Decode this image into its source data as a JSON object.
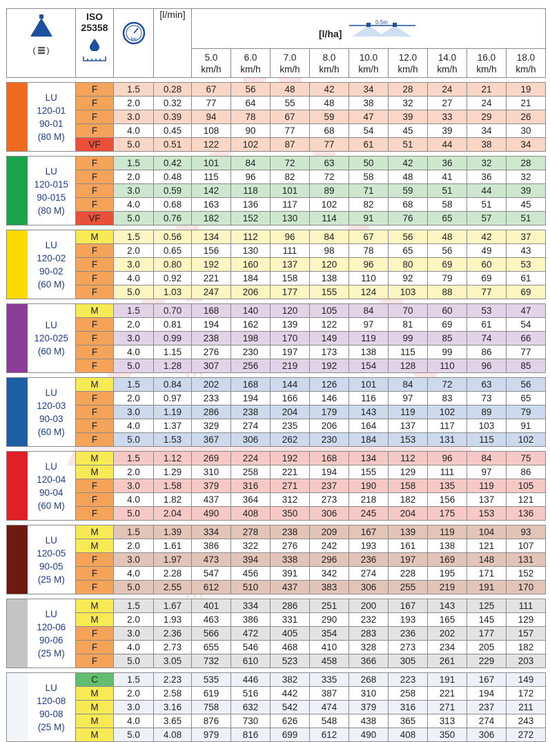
{
  "header": {
    "iso_title": "ISO",
    "iso_number": "25358",
    "flow_unit": "[l/min]",
    "rate_unit": "[l/ha]",
    "spacing_label": "0.5m",
    "speeds": [
      {
        "value": "5.0",
        "unit": "km/h"
      },
      {
        "value": "6.0",
        "unit": "km/h"
      },
      {
        "value": "7.0",
        "unit": "km/h"
      },
      {
        "value": "8.0",
        "unit": "km/h"
      },
      {
        "value": "10.0",
        "unit": "km/h"
      },
      {
        "value": "12.0",
        "unit": "km/h"
      },
      {
        "value": "14.0",
        "unit": "km/h"
      },
      {
        "value": "16.0",
        "unit": "km/h"
      },
      {
        "value": "18.0",
        "unit": "km/h"
      }
    ]
  },
  "droplet_class_colors": {
    "VF": "#e8503a",
    "F": "#f6a35a",
    "M": "#f7ea55",
    "C": "#63bd6e"
  },
  "watermark_text": "BUSINESS WITH PEOPLE",
  "nozzles": [
    {
      "name": [
        "LU",
        "120-01",
        "90-01",
        "(80 M)"
      ],
      "color": "#f06a1f",
      "tint": "#f9d6c6",
      "rows": [
        {
          "class": "F",
          "bar": "1.5",
          "flow": "0.28",
          "rates": [
            "67",
            "56",
            "48",
            "42",
            "34",
            "28",
            "24",
            "21",
            "19"
          ]
        },
        {
          "class": "F",
          "bar": "2.0",
          "flow": "0.32",
          "rates": [
            "77",
            "64",
            "55",
            "48",
            "38",
            "32",
            "27",
            "24",
            "21"
          ]
        },
        {
          "class": "F",
          "bar": "3.0",
          "flow": "0.39",
          "rates": [
            "94",
            "78",
            "67",
            "59",
            "47",
            "39",
            "33",
            "29",
            "26"
          ]
        },
        {
          "class": "F",
          "bar": "4.0",
          "flow": "0.45",
          "rates": [
            "108",
            "90",
            "77",
            "68",
            "54",
            "45",
            "39",
            "34",
            "30"
          ]
        },
        {
          "class": "VF",
          "bar": "5.0",
          "flow": "0.51",
          "rates": [
            "122",
            "102",
            "87",
            "77",
            "61",
            "51",
            "44",
            "38",
            "34"
          ]
        }
      ]
    },
    {
      "name": [
        "LU",
        "120-015",
        "90-015",
        "(80 M)"
      ],
      "color": "#1aa44b",
      "tint": "#cde8cf",
      "rows": [
        {
          "class": "F",
          "bar": "1.5",
          "flow": "0.42",
          "rates": [
            "101",
            "84",
            "72",
            "63",
            "50",
            "42",
            "36",
            "32",
            "28"
          ]
        },
        {
          "class": "F",
          "bar": "2.0",
          "flow": "0.48",
          "rates": [
            "115",
            "96",
            "82",
            "72",
            "58",
            "48",
            "41",
            "36",
            "32"
          ]
        },
        {
          "class": "F",
          "bar": "3.0",
          "flow": "0.59",
          "rates": [
            "142",
            "118",
            "101",
            "89",
            "71",
            "59",
            "51",
            "44",
            "39"
          ]
        },
        {
          "class": "F",
          "bar": "4.0",
          "flow": "0.68",
          "rates": [
            "163",
            "136",
            "117",
            "102",
            "82",
            "68",
            "58",
            "51",
            "45"
          ]
        },
        {
          "class": "VF",
          "bar": "5.0",
          "flow": "0.76",
          "rates": [
            "182",
            "152",
            "130",
            "114",
            "91",
            "76",
            "65",
            "57",
            "51"
          ]
        }
      ]
    },
    {
      "name": [
        "LU",
        "120-02",
        "90-02",
        "(60 M)"
      ],
      "color": "#fcd900",
      "tint": "#fdf6c2",
      "rows": [
        {
          "class": "M",
          "bar": "1.5",
          "flow": "0.56",
          "rates": [
            "134",
            "112",
            "96",
            "84",
            "67",
            "56",
            "48",
            "42",
            "37"
          ]
        },
        {
          "class": "F",
          "bar": "2.0",
          "flow": "0.65",
          "rates": [
            "156",
            "130",
            "111",
            "98",
            "78",
            "65",
            "56",
            "49",
            "43"
          ]
        },
        {
          "class": "F",
          "bar": "3.0",
          "flow": "0.80",
          "rates": [
            "192",
            "160",
            "137",
            "120",
            "96",
            "80",
            "69",
            "60",
            "53"
          ]
        },
        {
          "class": "F",
          "bar": "4.0",
          "flow": "0.92",
          "rates": [
            "221",
            "184",
            "158",
            "138",
            "110",
            "92",
            "79",
            "69",
            "61"
          ]
        },
        {
          "class": "F",
          "bar": "5.0",
          "flow": "1.03",
          "rates": [
            "247",
            "206",
            "177",
            "155",
            "124",
            "103",
            "88",
            "77",
            "69"
          ]
        }
      ]
    },
    {
      "name": [
        "LU",
        "120-025",
        "(60 M)"
      ],
      "color": "#8b3d98",
      "tint": "#e3d3e9",
      "rows": [
        {
          "class": "M",
          "bar": "1.5",
          "flow": "0.70",
          "rates": [
            "168",
            "140",
            "120",
            "105",
            "84",
            "70",
            "60",
            "53",
            "47"
          ]
        },
        {
          "class": "F",
          "bar": "2.0",
          "flow": "0.81",
          "rates": [
            "194",
            "162",
            "139",
            "122",
            "97",
            "81",
            "69",
            "61",
            "54"
          ]
        },
        {
          "class": "F",
          "bar": "3.0",
          "flow": "0.99",
          "rates": [
            "238",
            "198",
            "170",
            "149",
            "119",
            "99",
            "85",
            "74",
            "66"
          ]
        },
        {
          "class": "F",
          "bar": "4.0",
          "flow": "1.15",
          "rates": [
            "276",
            "230",
            "197",
            "173",
            "138",
            "115",
            "99",
            "86",
            "77"
          ]
        },
        {
          "class": "F",
          "bar": "5.0",
          "flow": "1.28",
          "rates": [
            "307",
            "256",
            "219",
            "192",
            "154",
            "128",
            "110",
            "96",
            "85"
          ]
        }
      ]
    },
    {
      "name": [
        "LU",
        "120-03",
        "90-03",
        "(60 M)"
      ],
      "color": "#1d5fa5",
      "tint": "#cdd9ec",
      "rows": [
        {
          "class": "M",
          "bar": "1.5",
          "flow": "0.84",
          "rates": [
            "202",
            "168",
            "144",
            "126",
            "101",
            "84",
            "72",
            "63",
            "56"
          ]
        },
        {
          "class": "F",
          "bar": "2.0",
          "flow": "0.97",
          "rates": [
            "233",
            "194",
            "166",
            "146",
            "116",
            "97",
            "83",
            "73",
            "65"
          ]
        },
        {
          "class": "F",
          "bar": "3.0",
          "flow": "1.19",
          "rates": [
            "286",
            "238",
            "204",
            "179",
            "143",
            "119",
            "102",
            "89",
            "79"
          ]
        },
        {
          "class": "F",
          "bar": "4.0",
          "flow": "1.37",
          "rates": [
            "329",
            "274",
            "235",
            "206",
            "164",
            "137",
            "117",
            "103",
            "91"
          ]
        },
        {
          "class": "F",
          "bar": "5.0",
          "flow": "1.53",
          "rates": [
            "367",
            "306",
            "262",
            "230",
            "184",
            "153",
            "131",
            "115",
            "102"
          ]
        }
      ]
    },
    {
      "name": [
        "LU",
        "120-04",
        "90-04",
        "(60 M)"
      ],
      "color": "#e11f26",
      "tint": "#f7c9c6",
      "rows": [
        {
          "class": "M",
          "bar": "1.5",
          "flow": "1.12",
          "rates": [
            "269",
            "224",
            "192",
            "168",
            "134",
            "112",
            "96",
            "84",
            "75"
          ]
        },
        {
          "class": "M",
          "bar": "2.0",
          "flow": "1.29",
          "rates": [
            "310",
            "258",
            "221",
            "194",
            "155",
            "129",
            "111",
            "97",
            "86"
          ]
        },
        {
          "class": "F",
          "bar": "3.0",
          "flow": "1.58",
          "rates": [
            "379",
            "316",
            "271",
            "237",
            "190",
            "158",
            "135",
            "119",
            "105"
          ]
        },
        {
          "class": "F",
          "bar": "4.0",
          "flow": "1.82",
          "rates": [
            "437",
            "364",
            "312",
            "273",
            "218",
            "182",
            "156",
            "137",
            "121"
          ]
        },
        {
          "class": "F",
          "bar": "5.0",
          "flow": "2.04",
          "rates": [
            "490",
            "408",
            "350",
            "306",
            "245",
            "204",
            "175",
            "153",
            "136"
          ]
        }
      ]
    },
    {
      "name": [
        "LU",
        "120-05",
        "90-05",
        "(25 M)"
      ],
      "color": "#6e1a10",
      "tint": "#e3c4b8",
      "rows": [
        {
          "class": "M",
          "bar": "1.5",
          "flow": "1.39",
          "rates": [
            "334",
            "278",
            "238",
            "209",
            "167",
            "139",
            "119",
            "104",
            "93"
          ]
        },
        {
          "class": "M",
          "bar": "2.0",
          "flow": "1.61",
          "rates": [
            "386",
            "322",
            "276",
            "242",
            "193",
            "161",
            "138",
            "121",
            "107"
          ]
        },
        {
          "class": "F",
          "bar": "3.0",
          "flow": "1.97",
          "rates": [
            "473",
            "394",
            "338",
            "296",
            "236",
            "197",
            "169",
            "148",
            "131"
          ]
        },
        {
          "class": "F",
          "bar": "4.0",
          "flow": "2.28",
          "rates": [
            "547",
            "456",
            "391",
            "342",
            "274",
            "228",
            "195",
            "171",
            "152"
          ]
        },
        {
          "class": "F",
          "bar": "5.0",
          "flow": "2.55",
          "rates": [
            "612",
            "510",
            "437",
            "383",
            "306",
            "255",
            "219",
            "191",
            "170"
          ]
        }
      ]
    },
    {
      "name": [
        "LU",
        "120-06",
        "90-06",
        "(25 M)"
      ],
      "color": "#c4c4c4",
      "tint": "#e3e3e3",
      "rows": [
        {
          "class": "M",
          "bar": "1.5",
          "flow": "1.67",
          "rates": [
            "401",
            "334",
            "286",
            "251",
            "200",
            "167",
            "143",
            "125",
            "111"
          ]
        },
        {
          "class": "M",
          "bar": "2.0",
          "flow": "1.93",
          "rates": [
            "463",
            "386",
            "331",
            "290",
            "232",
            "193",
            "165",
            "145",
            "129"
          ]
        },
        {
          "class": "F",
          "bar": "3.0",
          "flow": "2.36",
          "rates": [
            "566",
            "472",
            "405",
            "354",
            "283",
            "236",
            "202",
            "177",
            "157"
          ]
        },
        {
          "class": "F",
          "bar": "4.0",
          "flow": "2.73",
          "rates": [
            "655",
            "546",
            "468",
            "410",
            "328",
            "273",
            "234",
            "205",
            "182"
          ]
        },
        {
          "class": "F",
          "bar": "5.0",
          "flow": "3.05",
          "rates": [
            "732",
            "610",
            "523",
            "458",
            "366",
            "305",
            "261",
            "229",
            "203"
          ]
        }
      ]
    },
    {
      "name": [
        "LU",
        "120-08",
        "90-08",
        "(25 M)"
      ],
      "color": "#f2f6fb",
      "tint": "#eef2f8",
      "rows": [
        {
          "class": "C",
          "bar": "1.5",
          "flow": "2.23",
          "rates": [
            "535",
            "446",
            "382",
            "335",
            "268",
            "223",
            "191",
            "167",
            "149"
          ]
        },
        {
          "class": "M",
          "bar": "2.0",
          "flow": "2.58",
          "rates": [
            "619",
            "516",
            "442",
            "387",
            "310",
            "258",
            "221",
            "194",
            "172"
          ]
        },
        {
          "class": "M",
          "bar": "3.0",
          "flow": "3.16",
          "rates": [
            "758",
            "632",
            "542",
            "474",
            "379",
            "316",
            "271",
            "237",
            "211"
          ]
        },
        {
          "class": "M",
          "bar": "4.0",
          "flow": "3.65",
          "rates": [
            "876",
            "730",
            "626",
            "548",
            "438",
            "365",
            "313",
            "274",
            "243"
          ]
        },
        {
          "class": "M",
          "bar": "5.0",
          "flow": "4.08",
          "rates": [
            "979",
            "816",
            "699",
            "612",
            "490",
            "408",
            "350",
            "306",
            "272"
          ]
        }
      ]
    }
  ]
}
